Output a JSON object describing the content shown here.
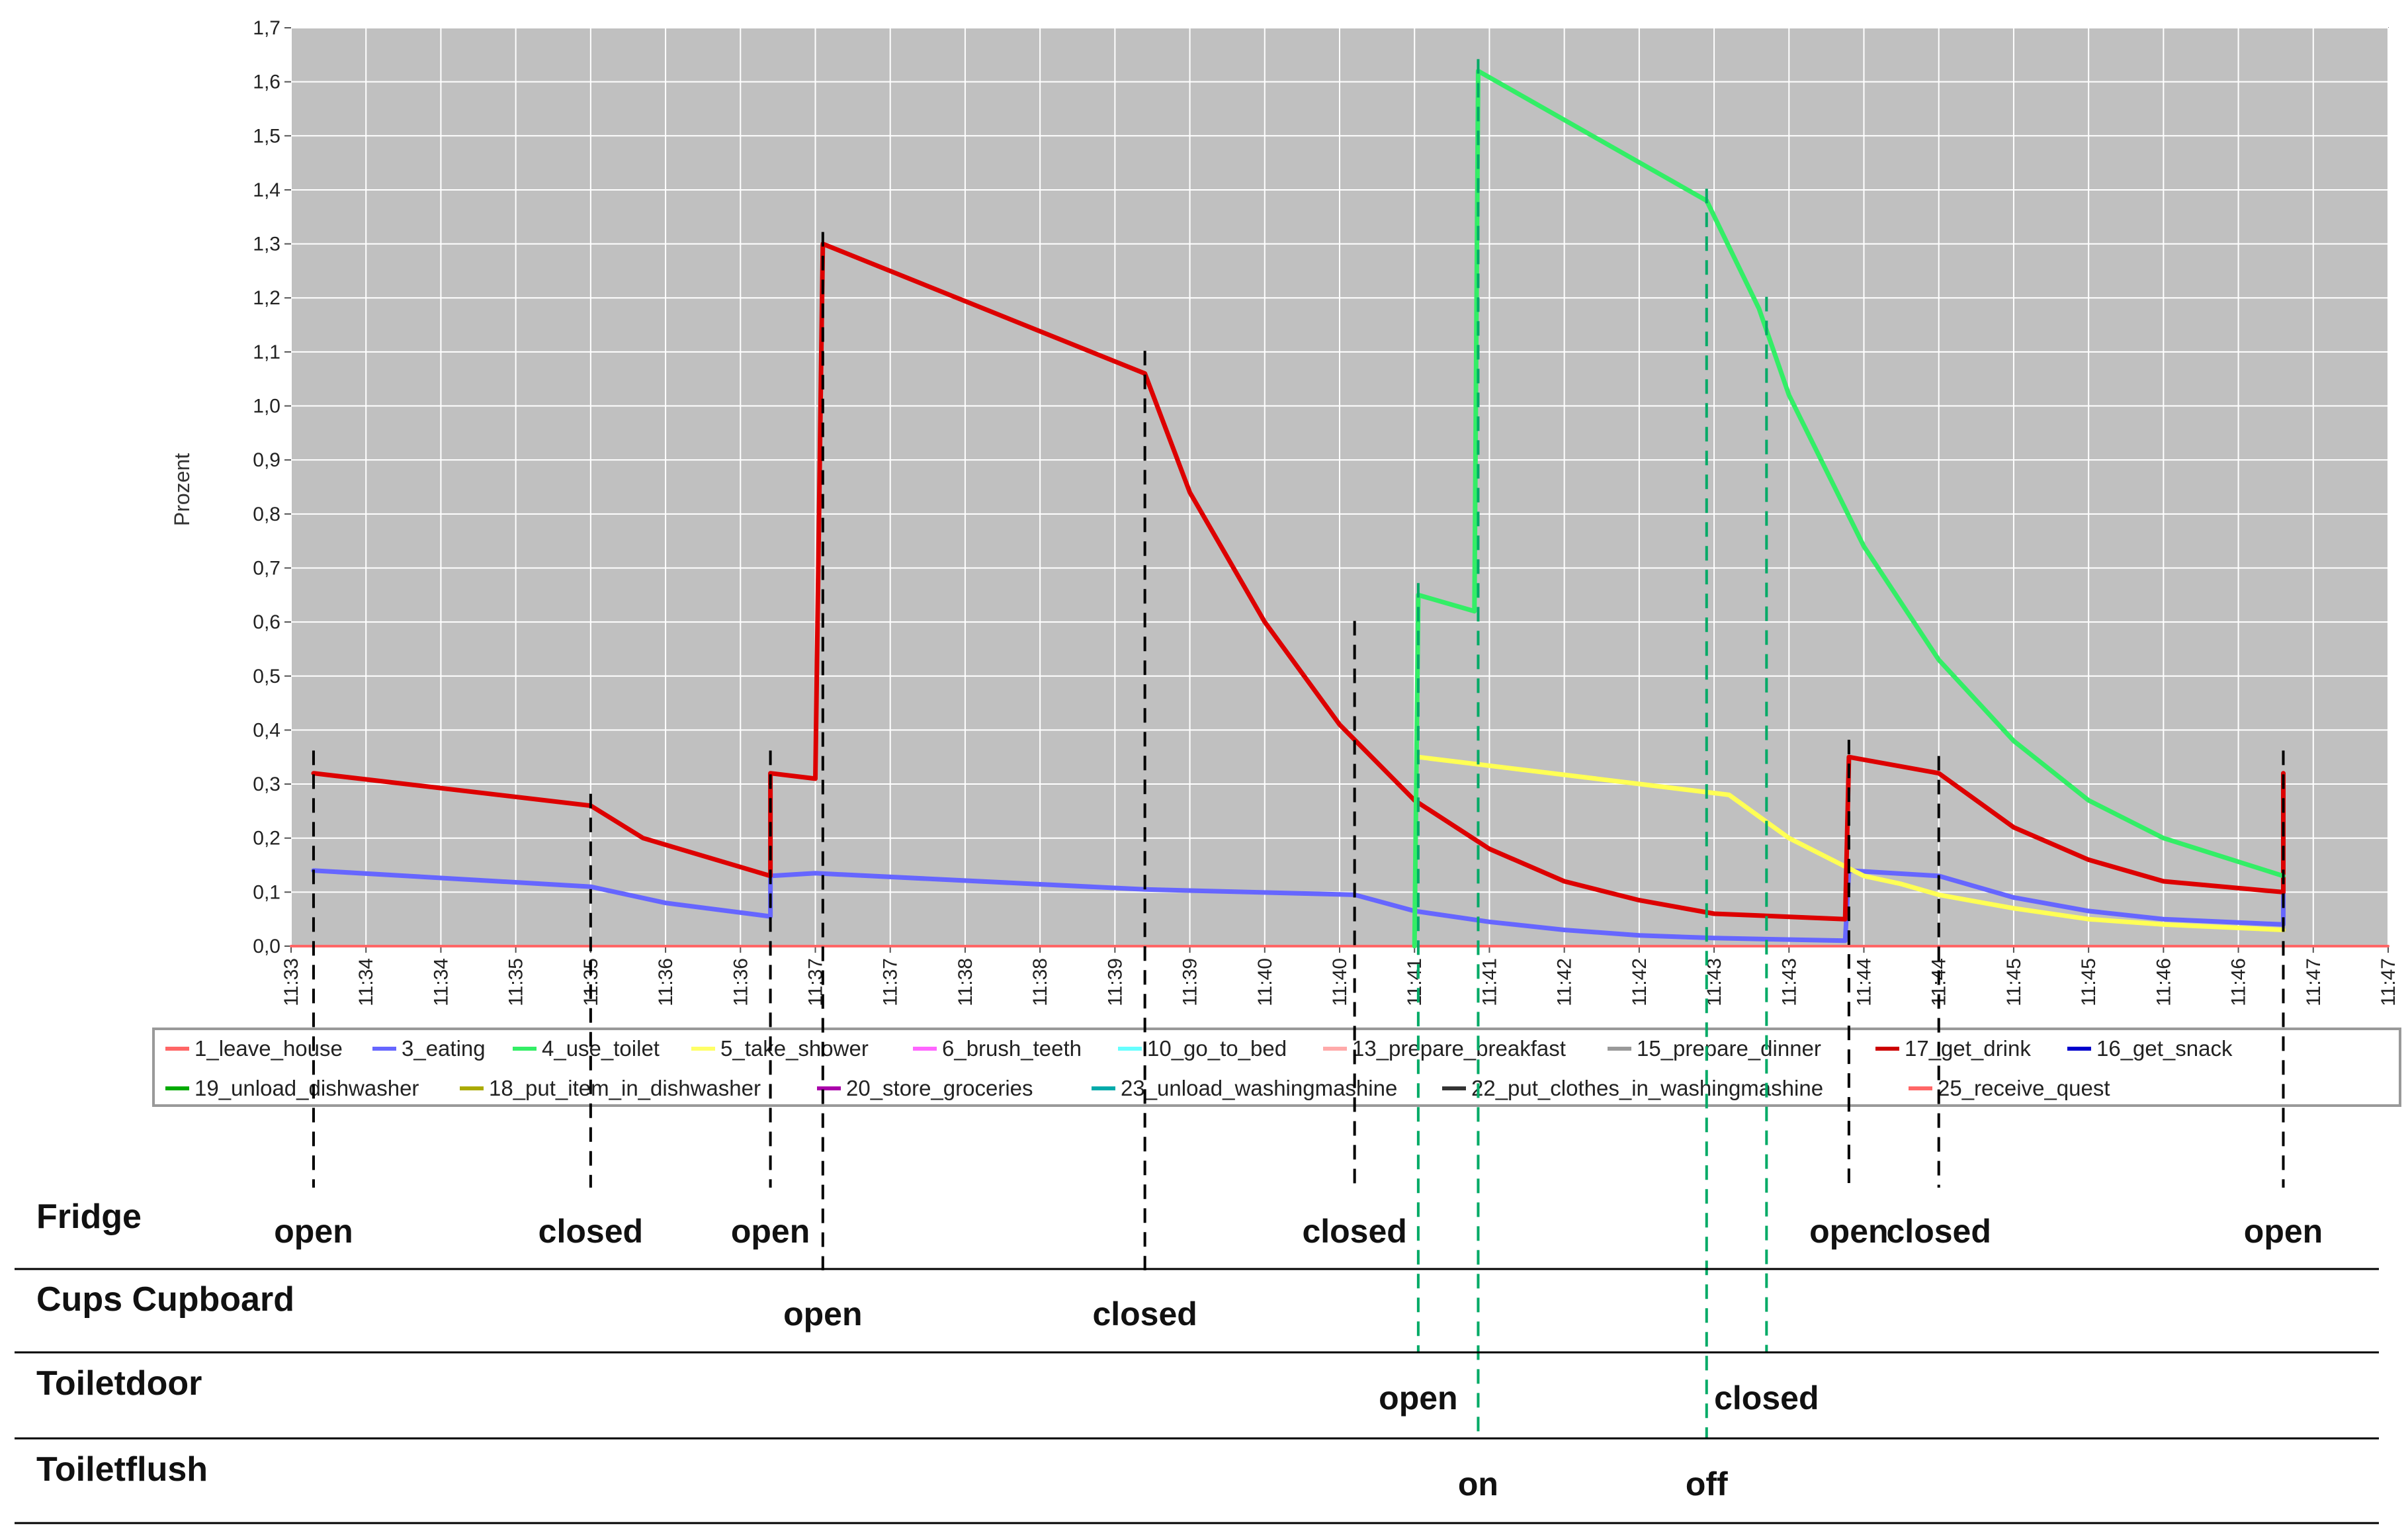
{
  "chart_data": {
    "type": "line",
    "ylabel": "Prozent",
    "xlabel": "",
    "ylim": [
      0,
      1.7
    ],
    "y_ticks": [
      "0,0",
      "0,1",
      "0,2",
      "0,3",
      "0,4",
      "0,5",
      "0,6",
      "0,7",
      "0,8",
      "0,9",
      "1,0",
      "1,1",
      "1,2",
      "1,3",
      "1,4",
      "1,5",
      "1,6",
      "1,7"
    ],
    "x_ticks": [
      "11:33",
      "11:34",
      "11:34",
      "11:35",
      "11:35",
      "11:36",
      "11:36",
      "11:37",
      "11:37",
      "11:38",
      "11:38",
      "11:39",
      "11:39",
      "11:40",
      "11:40",
      "11:41",
      "11:41",
      "11:42",
      "11:42",
      "11:43",
      "11:43",
      "11:44",
      "11:44",
      "11:45",
      "11:45",
      "11:46",
      "11:46",
      "11:47",
      "11:47"
    ],
    "xlim": [
      0,
      28
    ],
    "legend": [
      {
        "label": "1_leave_house",
        "color": "#ff6666"
      },
      {
        "label": "3_eating",
        "color": "#6666ff"
      },
      {
        "label": "4_use_toilet",
        "color": "#33ee66"
      },
      {
        "label": "5_take_shower",
        "color": "#ffff66"
      },
      {
        "label": "6_brush_teeth",
        "color": "#ff66ff"
      },
      {
        "label": "10_go_to_bed",
        "color": "#66ffff"
      },
      {
        "label": "13_prepare_breakfast",
        "color": "#ffaaaa"
      },
      {
        "label": "15_prepare_dinner",
        "color": "#999999"
      },
      {
        "label": "17_get_drink",
        "color": "#cc0000"
      },
      {
        "label": "16_get_snack",
        "color": "#0000cc"
      },
      {
        "label": "19_unload_dishwasher",
        "color": "#00aa00"
      },
      {
        "label": "18_put_item_in_dishwasher",
        "color": "#aaaa00"
      },
      {
        "label": "20_store_groceries",
        "color": "#aa00aa"
      },
      {
        "label": "23_unload_washingmashine",
        "color": "#00aaaa"
      },
      {
        "label": "22_put_clothes_in_washingmashine",
        "color": "#333333"
      },
      {
        "label": "25_receive_quest",
        "color": "#ff6666"
      }
    ],
    "series": [
      {
        "name": "17_get_drink",
        "color": "#dd0000",
        "points": [
          [
            0.3,
            0.32
          ],
          [
            4.0,
            0.26
          ],
          [
            4.7,
            0.2
          ],
          [
            6.4,
            0.13
          ],
          [
            6.4,
            0.32
          ],
          [
            7.0,
            0.31
          ],
          [
            7.1,
            1.3
          ],
          [
            11.4,
            1.06
          ],
          [
            12.0,
            0.84
          ],
          [
            13.0,
            0.6
          ],
          [
            14.0,
            0.41
          ],
          [
            15.0,
            0.27
          ],
          [
            16.0,
            0.18
          ],
          [
            17.0,
            0.12
          ],
          [
            18.0,
            0.085
          ],
          [
            19.0,
            0.06
          ],
          [
            20.75,
            0.05
          ],
          [
            20.8,
            0.35
          ],
          [
            22.0,
            0.32
          ],
          [
            23.0,
            0.22
          ],
          [
            24.0,
            0.16
          ],
          [
            25.0,
            0.12
          ],
          [
            26.6,
            0.1
          ],
          [
            26.6,
            0.32
          ]
        ]
      },
      {
        "name": "3_eating",
        "color": "#6666ff",
        "points": [
          [
            0.3,
            0.14
          ],
          [
            4.0,
            0.11
          ],
          [
            5.0,
            0.08
          ],
          [
            6.4,
            0.055
          ],
          [
            6.4,
            0.13
          ],
          [
            7.0,
            0.135
          ],
          [
            11.4,
            0.105
          ],
          [
            14.2,
            0.095
          ],
          [
            15.0,
            0.065
          ],
          [
            16.0,
            0.045
          ],
          [
            17.0,
            0.03
          ],
          [
            18.0,
            0.02
          ],
          [
            19.0,
            0.015
          ],
          [
            20.75,
            0.01
          ],
          [
            20.8,
            0.14
          ],
          [
            22.0,
            0.13
          ],
          [
            23.0,
            0.09
          ],
          [
            24.0,
            0.065
          ],
          [
            25.0,
            0.05
          ],
          [
            26.6,
            0.04
          ],
          [
            26.6,
            0.14
          ]
        ]
      },
      {
        "name": "5_take_shower",
        "color": "#ffff55",
        "points": [
          [
            15.05,
            0.35
          ],
          [
            19.2,
            0.28
          ],
          [
            20.0,
            0.2
          ],
          [
            21.0,
            0.13
          ],
          [
            21.5,
            0.115
          ],
          [
            22.0,
            0.095
          ],
          [
            23.0,
            0.07
          ],
          [
            24.0,
            0.05
          ],
          [
            25.0,
            0.04
          ],
          [
            26.6,
            0.03
          ]
        ]
      },
      {
        "name": "4_use_toilet",
        "color": "#33ee66",
        "points": [
          [
            15.0,
            0.0
          ],
          [
            15.05,
            0.65
          ],
          [
            15.8,
            0.62
          ],
          [
            15.85,
            1.62
          ],
          [
            18.9,
            1.38
          ],
          [
            19.6,
            1.18
          ],
          [
            20.0,
            1.02
          ],
          [
            21.0,
            0.74
          ],
          [
            22.0,
            0.53
          ],
          [
            23.0,
            0.38
          ],
          [
            24.0,
            0.27
          ],
          [
            25.0,
            0.2
          ],
          [
            26.6,
            0.13
          ]
        ]
      },
      {
        "name": "1_leave_house",
        "color": "#ff6666",
        "points": [
          [
            0.0,
            0.0
          ],
          [
            28.0,
            0.0
          ]
        ]
      }
    ]
  },
  "event_table": {
    "rows": [
      {
        "label": "Fridge"
      },
      {
        "label": "Cups Cupboard"
      },
      {
        "label": "Toiletdoor"
      },
      {
        "label": "Toiletflush"
      }
    ],
    "events": [
      {
        "row": 0,
        "text": "open",
        "x": 0.3,
        "marker_top_y": 0.34,
        "color": "#000000"
      },
      {
        "row": 0,
        "text": "closed",
        "x": 4.0,
        "marker_top_y": 0.26,
        "color": "#000000"
      },
      {
        "row": 0,
        "text": "open",
        "x": 6.4,
        "marker_top_y": 0.34,
        "color": "#000000"
      },
      {
        "row": 1,
        "text": "open",
        "x": 7.1,
        "marker_top_y": 1.3,
        "color": "#000000"
      },
      {
        "row": 1,
        "text": "closed",
        "x": 11.4,
        "marker_top_y": 1.08,
        "color": "#000000"
      },
      {
        "row": 0,
        "text": "closed",
        "x": 14.2,
        "marker_top_y": 0.58,
        "color": "#000000"
      },
      {
        "row": 2,
        "text": "open",
        "x": 15.05,
        "marker_top_y": 0.65,
        "color": "#00aa66"
      },
      {
        "row": 3,
        "text": "on",
        "x": 15.85,
        "marker_top_y": 1.62,
        "color": "#00aa66"
      },
      {
        "row": 3,
        "text": "off",
        "x": 18.9,
        "marker_top_y": 1.38,
        "color": "#00aa66"
      },
      {
        "row": 2,
        "text": "closed",
        "x": 19.7,
        "marker_top_y": 1.18,
        "color": "#00aa66"
      },
      {
        "row": 0,
        "text": "open",
        "x": 20.8,
        "marker_top_y": 0.36,
        "color": "#000000"
      },
      {
        "row": 0,
        "text": "closed",
        "x": 22.0,
        "marker_top_y": 0.33,
        "color": "#000000"
      },
      {
        "row": 0,
        "text": "open",
        "x": 26.6,
        "marker_top_y": 0.34,
        "color": "#000000"
      }
    ]
  }
}
